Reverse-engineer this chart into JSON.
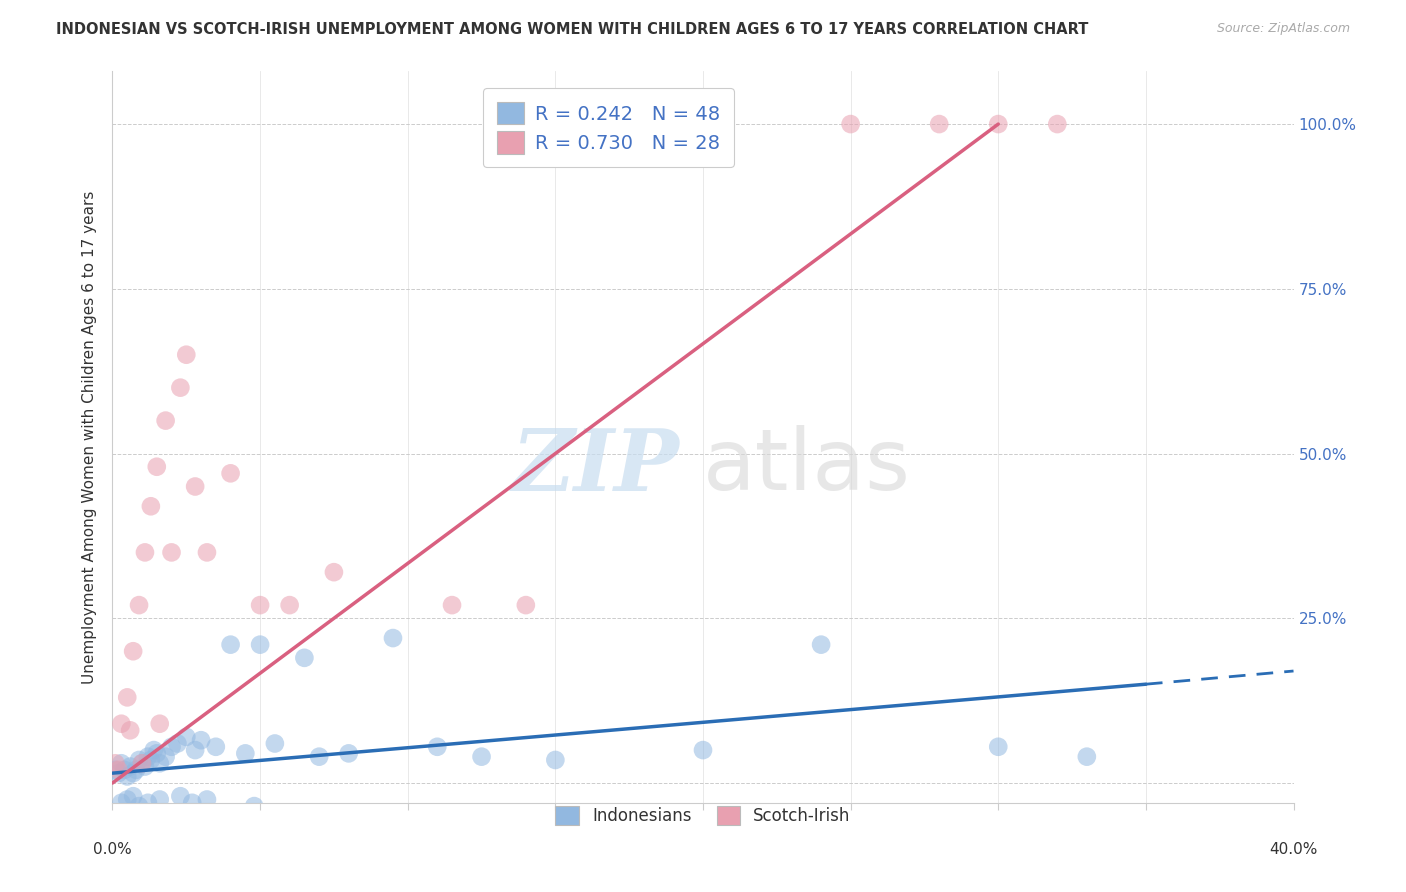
{
  "title": "INDONESIAN VS SCOTCH-IRISH UNEMPLOYMENT AMONG WOMEN WITH CHILDREN AGES 6 TO 17 YEARS CORRELATION CHART",
  "source": "Source: ZipAtlas.com",
  "ylabel": "Unemployment Among Women with Children Ages 6 to 17 years",
  "xlim": [
    0.0,
    40.0
  ],
  "ylim": [
    -3.0,
    108.0
  ],
  "legend_r1": "R = 0.242",
  "legend_n1": "N = 48",
  "legend_r2": "R = 0.730",
  "legend_n2": "N = 28",
  "watermark_zip": "ZIP",
  "watermark_atlas": "atlas",
  "blue_scatter_color": "#92b8e0",
  "pink_scatter_color": "#e8a0b0",
  "blue_line_color": "#2a6db5",
  "pink_line_color": "#d96080",
  "text_color": "#333333",
  "right_axis_color": "#4472c4",
  "grid_color": "#cccccc",
  "indonesian_x": [
    0.1,
    0.2,
    0.3,
    0.4,
    0.5,
    0.6,
    0.7,
    0.8,
    0.9,
    1.0,
    1.1,
    1.2,
    1.3,
    1.4,
    1.5,
    1.6,
    1.8,
    2.0,
    2.2,
    2.5,
    2.8,
    3.0,
    3.5,
    4.0,
    4.5,
    5.0,
    5.5,
    6.5,
    7.0,
    8.0,
    9.5,
    11.0,
    12.5,
    15.0,
    20.0,
    24.0,
    30.0,
    33.0,
    0.3,
    0.5,
    0.7,
    0.9,
    1.2,
    1.6,
    2.3,
    2.7,
    3.2,
    4.8
  ],
  "indonesian_y": [
    2.0,
    1.5,
    3.0,
    2.0,
    1.0,
    2.5,
    1.5,
    2.0,
    3.5,
    3.0,
    2.5,
    4.0,
    3.5,
    5.0,
    4.5,
    3.0,
    4.0,
    5.5,
    6.0,
    7.0,
    5.0,
    6.5,
    5.5,
    21.0,
    4.5,
    21.0,
    6.0,
    19.0,
    4.0,
    4.5,
    22.0,
    5.5,
    4.0,
    3.5,
    5.0,
    21.0,
    5.5,
    4.0,
    -3.0,
    -2.5,
    -2.0,
    -3.5,
    -3.0,
    -2.5,
    -2.0,
    -3.0,
    -2.5,
    -3.5
  ],
  "scotchirish_x": [
    0.1,
    0.3,
    0.5,
    0.7,
    0.9,
    1.1,
    1.3,
    1.5,
    1.8,
    2.0,
    2.3,
    2.5,
    2.8,
    3.2,
    4.0,
    5.0,
    6.0,
    7.5,
    11.5,
    14.0,
    25.0,
    28.0,
    30.0,
    32.0,
    0.2,
    0.6,
    1.0,
    1.6
  ],
  "scotchirish_y": [
    3.0,
    9.0,
    13.0,
    20.0,
    27.0,
    35.0,
    42.0,
    48.0,
    55.0,
    35.0,
    60.0,
    65.0,
    45.0,
    35.0,
    47.0,
    27.0,
    27.0,
    32.0,
    27.0,
    27.0,
    100.0,
    100.0,
    100.0,
    100.0,
    2.0,
    8.0,
    3.0,
    9.0
  ],
  "pink_line_x0": 0.0,
  "pink_line_y0": 0.0,
  "pink_line_x1": 30.0,
  "pink_line_y1": 100.0,
  "blue_solid_x0": 0.0,
  "blue_solid_y0": 1.5,
  "blue_solid_x1": 35.0,
  "blue_solid_y1": 15.0,
  "blue_dash_x0": 35.0,
  "blue_dash_y0": 15.0,
  "blue_dash_x1": 40.0,
  "blue_dash_y1": 17.0
}
